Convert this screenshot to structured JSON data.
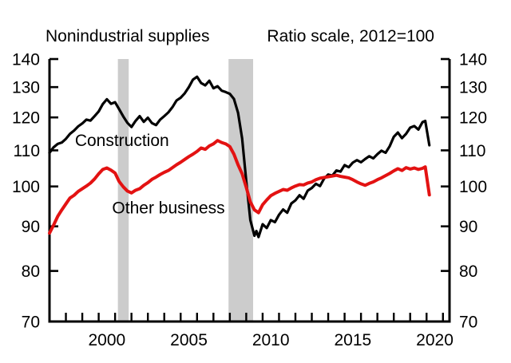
{
  "chart_data": {
    "type": "line",
    "title_left": "Nonindustrial supplies",
    "title_right": "Ratio scale, 2012=100",
    "y_axis": {
      "scale": "log",
      "min": 70,
      "max": 140,
      "ticks": [
        70,
        80,
        90,
        100,
        110,
        120,
        130,
        140
      ],
      "labels_both_sides": true
    },
    "x_axis": {
      "min": 1997.0,
      "max": 2021.4,
      "tick_years": [
        1998,
        1999,
        2000,
        2001,
        2002,
        2003,
        2004,
        2005,
        2006,
        2007,
        2008,
        2009,
        2010,
        2011,
        2012,
        2013,
        2014,
        2015,
        2016,
        2017,
        2018,
        2019,
        2020,
        2021
      ],
      "label_years": [
        2000,
        2005,
        2010,
        2015,
        2020
      ],
      "label_center_offset": 0.5
    },
    "recession_bands": [
      {
        "start": 2001.17,
        "end": 2001.83
      },
      {
        "start": 2007.92,
        "end": 2009.42
      }
    ],
    "colors": {
      "construction": "#000000",
      "other_business": "#e31212",
      "recession_band": "#cccccc",
      "axis": "#000000"
    },
    "annotations": [
      {
        "id": "construction",
        "text": "Construction",
        "t": 1998.55,
        "value": 113.0,
        "color": "#000000"
      },
      {
        "id": "other-business",
        "text": "Other business",
        "t": 2000.82,
        "value": 94.6,
        "color": "#e31212"
      }
    ],
    "series": [
      {
        "name": "Construction",
        "color": "#000000",
        "stroke_width": 3.2,
        "points": [
          [
            1997.0,
            109.3
          ],
          [
            1997.25,
            110.9
          ],
          [
            1997.5,
            111.9
          ],
          [
            1997.75,
            112.3
          ],
          [
            1998.0,
            113.4
          ],
          [
            1998.25,
            114.9
          ],
          [
            1998.5,
            115.9
          ],
          [
            1998.75,
            117.2
          ],
          [
            1999.0,
            118.1
          ],
          [
            1999.25,
            119.3
          ],
          [
            1999.5,
            119.0
          ],
          [
            1999.75,
            120.4
          ],
          [
            2000.0,
            121.9
          ],
          [
            2000.25,
            124.3
          ],
          [
            2000.5,
            125.9
          ],
          [
            2000.75,
            124.4
          ],
          [
            2001.0,
            124.9
          ],
          [
            2001.25,
            122.6
          ],
          [
            2001.5,
            120.3
          ],
          [
            2001.75,
            118.3
          ],
          [
            2002.0,
            117.0
          ],
          [
            2002.25,
            118.9
          ],
          [
            2002.5,
            120.4
          ],
          [
            2002.75,
            118.6
          ],
          [
            2003.0,
            119.9
          ],
          [
            2003.25,
            118.2
          ],
          [
            2003.5,
            117.6
          ],
          [
            2003.75,
            119.3
          ],
          [
            2004.0,
            120.4
          ],
          [
            2004.25,
            121.6
          ],
          [
            2004.5,
            123.3
          ],
          [
            2004.75,
            125.5
          ],
          [
            2005.0,
            126.4
          ],
          [
            2005.25,
            127.9
          ],
          [
            2005.5,
            130.0
          ],
          [
            2005.75,
            132.6
          ],
          [
            2006.0,
            133.6
          ],
          [
            2006.25,
            131.4
          ],
          [
            2006.5,
            130.6
          ],
          [
            2006.75,
            132.2
          ],
          [
            2007.0,
            129.6
          ],
          [
            2007.25,
            130.3
          ],
          [
            2007.5,
            128.8
          ],
          [
            2007.75,
            128.3
          ],
          [
            2008.0,
            127.7
          ],
          [
            2008.25,
            126.0
          ],
          [
            2008.5,
            121.5
          ],
          [
            2008.75,
            113.5
          ],
          [
            2009.0,
            101.5
          ],
          [
            2009.25,
            91.5
          ],
          [
            2009.5,
            87.8
          ],
          [
            2009.62,
            88.9
          ],
          [
            2009.75,
            87.5
          ],
          [
            2010.0,
            90.5
          ],
          [
            2010.25,
            89.6
          ],
          [
            2010.5,
            91.5
          ],
          [
            2010.75,
            91.0
          ],
          [
            2011.0,
            92.8
          ],
          [
            2011.25,
            94.1
          ],
          [
            2011.5,
            93.3
          ],
          [
            2011.75,
            95.6
          ],
          [
            2012.0,
            96.4
          ],
          [
            2012.25,
            97.7
          ],
          [
            2012.5,
            96.8
          ],
          [
            2012.75,
            98.9
          ],
          [
            2013.0,
            99.6
          ],
          [
            2013.25,
            100.7
          ],
          [
            2013.5,
            100.1
          ],
          [
            2013.75,
            102.1
          ],
          [
            2014.0,
            103.2
          ],
          [
            2014.25,
            102.9
          ],
          [
            2014.5,
            104.3
          ],
          [
            2014.75,
            104.0
          ],
          [
            2015.0,
            105.8
          ],
          [
            2015.25,
            105.2
          ],
          [
            2015.5,
            106.5
          ],
          [
            2015.75,
            107.2
          ],
          [
            2016.0,
            106.6
          ],
          [
            2016.25,
            107.5
          ],
          [
            2016.5,
            108.3
          ],
          [
            2016.75,
            107.7
          ],
          [
            2017.0,
            108.9
          ],
          [
            2017.25,
            109.9
          ],
          [
            2017.5,
            109.3
          ],
          [
            2017.75,
            111.2
          ],
          [
            2018.0,
            114.0
          ],
          [
            2018.25,
            115.3
          ],
          [
            2018.5,
            113.6
          ],
          [
            2018.75,
            114.9
          ],
          [
            2019.0,
            116.8
          ],
          [
            2019.25,
            117.3
          ],
          [
            2019.5,
            116.2
          ],
          [
            2019.75,
            118.5
          ],
          [
            2019.92,
            118.9
          ],
          [
            2020.17,
            111.5
          ]
        ]
      },
      {
        "name": "Other business",
        "color": "#e31212",
        "stroke_width": 4.0,
        "points": [
          [
            1997.0,
            88.4
          ],
          [
            1997.25,
            90.3
          ],
          [
            1997.5,
            92.4
          ],
          [
            1997.75,
            94.0
          ],
          [
            1998.0,
            95.5
          ],
          [
            1998.25,
            97.0
          ],
          [
            1998.5,
            97.7
          ],
          [
            1998.75,
            98.7
          ],
          [
            1999.0,
            99.4
          ],
          [
            1999.25,
            100.1
          ],
          [
            1999.5,
            100.9
          ],
          [
            1999.75,
            102.0
          ],
          [
            2000.0,
            103.4
          ],
          [
            2000.25,
            104.6
          ],
          [
            2000.5,
            105.0
          ],
          [
            2000.75,
            104.4
          ],
          [
            2001.0,
            103.6
          ],
          [
            2001.25,
            101.3
          ],
          [
            2001.5,
            99.9
          ],
          [
            2001.75,
            98.8
          ],
          [
            2002.0,
            98.3
          ],
          [
            2002.25,
            99.0
          ],
          [
            2002.5,
            99.4
          ],
          [
            2002.75,
            100.3
          ],
          [
            2003.0,
            101.0
          ],
          [
            2003.25,
            101.9
          ],
          [
            2003.5,
            102.5
          ],
          [
            2003.75,
            103.2
          ],
          [
            2004.0,
            103.8
          ],
          [
            2004.25,
            104.3
          ],
          [
            2004.5,
            105.1
          ],
          [
            2004.75,
            105.9
          ],
          [
            2005.0,
            106.6
          ],
          [
            2005.25,
            107.4
          ],
          [
            2005.5,
            108.2
          ],
          [
            2005.75,
            108.9
          ],
          [
            2006.0,
            109.7
          ],
          [
            2006.25,
            110.7
          ],
          [
            2006.5,
            110.3
          ],
          [
            2006.75,
            111.3
          ],
          [
            2007.0,
            111.9
          ],
          [
            2007.25,
            112.9
          ],
          [
            2007.5,
            112.3
          ],
          [
            2007.75,
            111.9
          ],
          [
            2008.0,
            111.1
          ],
          [
            2008.25,
            108.9
          ],
          [
            2008.5,
            105.9
          ],
          [
            2008.75,
            103.4
          ],
          [
            2009.0,
            99.8
          ],
          [
            2009.25,
            96.0
          ],
          [
            2009.5,
            94.0
          ],
          [
            2009.75,
            93.3
          ],
          [
            2010.0,
            95.3
          ],
          [
            2010.25,
            96.5
          ],
          [
            2010.5,
            97.6
          ],
          [
            2010.75,
            98.2
          ],
          [
            2011.0,
            98.7
          ],
          [
            2011.25,
            99.2
          ],
          [
            2011.5,
            99.0
          ],
          [
            2011.75,
            99.6
          ],
          [
            2012.0,
            100.1
          ],
          [
            2012.25,
            100.5
          ],
          [
            2012.5,
            100.4
          ],
          [
            2012.75,
            100.9
          ],
          [
            2013.0,
            101.2
          ],
          [
            2013.25,
            101.8
          ],
          [
            2013.5,
            102.2
          ],
          [
            2013.75,
            102.4
          ],
          [
            2014.0,
            102.6
          ],
          [
            2014.25,
            102.8
          ],
          [
            2014.5,
            103.0
          ],
          [
            2014.75,
            102.7
          ],
          [
            2015.0,
            102.5
          ],
          [
            2015.25,
            102.3
          ],
          [
            2015.5,
            101.8
          ],
          [
            2015.75,
            101.2
          ],
          [
            2016.0,
            100.7
          ],
          [
            2016.25,
            100.3
          ],
          [
            2016.5,
            100.8
          ],
          [
            2016.75,
            101.2
          ],
          [
            2017.0,
            101.8
          ],
          [
            2017.25,
            102.3
          ],
          [
            2017.5,
            102.9
          ],
          [
            2017.75,
            103.5
          ],
          [
            2018.0,
            104.2
          ],
          [
            2018.25,
            104.8
          ],
          [
            2018.5,
            104.3
          ],
          [
            2018.75,
            105.1
          ],
          [
            2019.0,
            104.7
          ],
          [
            2019.25,
            105.0
          ],
          [
            2019.5,
            104.6
          ],
          [
            2019.75,
            104.9
          ],
          [
            2019.92,
            105.3
          ],
          [
            2020.17,
            97.8
          ]
        ]
      }
    ]
  }
}
